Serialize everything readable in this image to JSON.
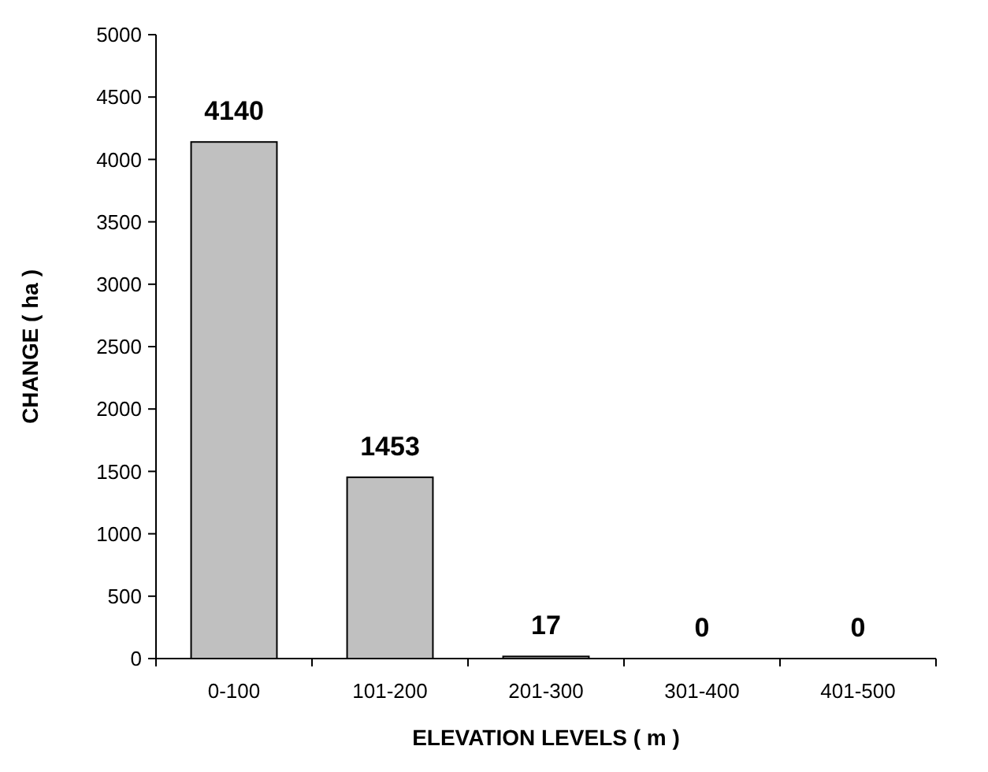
{
  "chart_data": {
    "type": "bar",
    "xlabel": "ELEVATION LEVELS ( m )",
    "ylabel": "CHANGE ( ha )",
    "categories": [
      "0-100",
      "101-200",
      "201-300",
      "301-400",
      "401-500"
    ],
    "values": [
      4140,
      1453,
      17,
      0,
      0
    ],
    "color": "#c0c0c0",
    "ylim": [
      0,
      5000
    ],
    "yticks": [
      0,
      500,
      1000,
      1500,
      2000,
      2500,
      3000,
      3500,
      4000,
      4500,
      5000
    ],
    "data_labels": true,
    "grid": false
  }
}
